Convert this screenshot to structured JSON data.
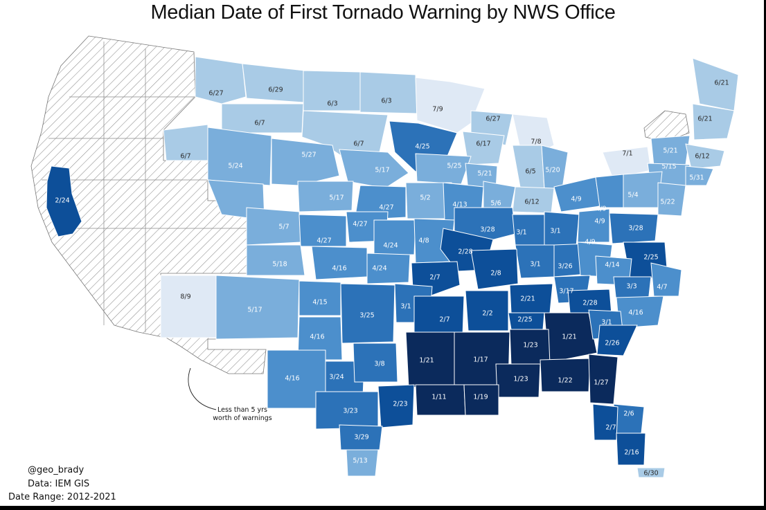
{
  "title": "Median Date of  First Tornado Warning by NWS Office",
  "credits": {
    "handle": "@geo_brady",
    "data": "Data: IEM GIS",
    "range": "Date Range: 2012-2021"
  },
  "annotation": "Less than 5 yrs worth of warnings",
  "colors": {
    "c1": "#0b2a5c",
    "c2": "#0d4f99",
    "c3": "#2c72b8",
    "c4": "#4c8fcc",
    "c5": "#7aaedb",
    "c6": "#a9cbe6",
    "c7": "#dfe9f5",
    "hatch": "#9a9a9a"
  },
  "offices": [
    {
      "id": "sto",
      "label": "2/24",
      "c": "c2"
    },
    {
      "id": "otx",
      "label": "6/27",
      "c": "c6"
    },
    {
      "id": "mso",
      "label": "6/29",
      "c": "c6"
    },
    {
      "id": "bis",
      "label": "6/3",
      "c": "c6"
    },
    {
      "id": "fgf",
      "label": "6/3",
      "c": "c6"
    },
    {
      "id": "dlh",
      "label": "7/9",
      "c": "c7"
    },
    {
      "id": "byz",
      "label": "6/7",
      "c": "c6"
    },
    {
      "id": "pdt",
      "label": "6/7",
      "c": "c6"
    },
    {
      "id": "unr",
      "label": "6/7",
      "c": "c6"
    },
    {
      "id": "mpx",
      "label": "4/25",
      "c": "c3"
    },
    {
      "id": "grb",
      "label": "6/27",
      "c": "c6"
    },
    {
      "id": "apx",
      "label": "7/8",
      "c": "c7"
    },
    {
      "id": "mkx",
      "label": "6/17",
      "c": "c6"
    },
    {
      "id": "cys",
      "label": "5/24",
      "c": "c5"
    },
    {
      "id": "lbf",
      "label": "5/27",
      "c": "c5"
    },
    {
      "id": "fsd",
      "label": "5/17",
      "c": "c5"
    },
    {
      "id": "arx",
      "label": "5/25",
      "c": "c5"
    },
    {
      "id": "dvn",
      "label": "5/21",
      "c": "c5"
    },
    {
      "id": "grr",
      "label": "6/5",
      "c": "c6"
    },
    {
      "id": "dtx",
      "label": "5/20",
      "c": "c5"
    },
    {
      "id": "buf",
      "label": "7/1",
      "c": "c7"
    },
    {
      "id": "btv",
      "label": "5/21",
      "c": "c5"
    },
    {
      "id": "box",
      "label": "6/12",
      "c": "c6"
    },
    {
      "id": "car",
      "label": "6/21",
      "c": "c6"
    },
    {
      "id": "gyx",
      "label": "6/21",
      "c": "c6"
    },
    {
      "id": "aly",
      "label": "5/15",
      "c": "c5"
    },
    {
      "id": "okx",
      "label": "5/31",
      "c": "c5"
    },
    {
      "id": "bou",
      "label": "5/17",
      "c": "c5"
    },
    {
      "id": "gld",
      "label": "5/17",
      "c": "c5"
    },
    {
      "id": "oax",
      "label": "4/27",
      "c": "c4"
    },
    {
      "id": "dmx",
      "label": "5/2",
      "c": "c5"
    },
    {
      "id": "ilx",
      "label": "4/13",
      "c": "c4"
    },
    {
      "id": "lot",
      "label": "5/6",
      "c": "c5"
    },
    {
      "id": "iwx",
      "label": "6/12",
      "c": "c6"
    },
    {
      "id": "cle",
      "label": "4/9",
      "c": "c4"
    },
    {
      "id": "ctp",
      "label": "4/9",
      "c": "c4"
    },
    {
      "id": "bgm",
      "label": "5/4",
      "c": "c5"
    },
    {
      "id": "phi",
      "label": "5/22",
      "c": "c5"
    },
    {
      "id": "gjt",
      "label": "5/7",
      "c": "c5"
    },
    {
      "id": "ddc",
      "label": "4/27",
      "c": "c4"
    },
    {
      "id": "top",
      "label": "4/27",
      "c": "c4"
    },
    {
      "id": "eax",
      "label": "4/24",
      "c": "c4"
    },
    {
      "id": "lsx",
      "label": "4/8",
      "c": "c4"
    },
    {
      "id": "pah",
      "label": "3/28",
      "c": "c3"
    },
    {
      "id": "ind",
      "label": "3/1",
      "c": "c3"
    },
    {
      "id": "iln",
      "label": "3/1",
      "c": "c3"
    },
    {
      "id": "pbz",
      "label": "4/9",
      "c": "c4"
    },
    {
      "id": "lwx",
      "label": "3/28",
      "c": "c3"
    },
    {
      "id": "pub",
      "label": "5/18",
      "c": "c5"
    },
    {
      "id": "ict",
      "label": "4/16",
      "c": "c4"
    },
    {
      "id": "sgf",
      "label": "4/24",
      "c": "c4"
    },
    {
      "id": "lzk_n",
      "label": "2/28",
      "c": "c2"
    },
    {
      "id": "lmk",
      "label": "3/1",
      "c": "c3"
    },
    {
      "id": "jkl",
      "label": "3/26",
      "c": "c3"
    },
    {
      "id": "rlx",
      "label": "4/9",
      "c": "c4"
    },
    {
      "id": "akq",
      "label": "2/25",
      "c": "c2"
    },
    {
      "id": "fcst",
      "label": "4/14",
      "c": "c4"
    },
    {
      "id": "abq",
      "label": "8/9",
      "c": "c7"
    },
    {
      "id": "abq2",
      "label": "5/17",
      "c": "c5"
    },
    {
      "id": "lzk",
      "label": "2/7",
      "c": "c2"
    },
    {
      "id": "ohx",
      "label": "2/8",
      "c": "c2"
    },
    {
      "id": "mrx",
      "label": "3/17",
      "c": "c3"
    },
    {
      "id": "rnk",
      "label": "3/3",
      "c": "c3"
    },
    {
      "id": "mhx",
      "label": "4/7",
      "c": "c4"
    },
    {
      "id": "ama",
      "label": "4/15",
      "c": "c4"
    },
    {
      "id": "oun",
      "label": "3/25",
      "c": "c3"
    },
    {
      "id": "tsa",
      "label": "3/1",
      "c": "c3"
    },
    {
      "id": "meg",
      "label": "2/21",
      "c": "c2"
    },
    {
      "id": "gsp",
      "label": "2/28",
      "c": "c2"
    },
    {
      "id": "rah",
      "label": "4/16",
      "c": "c4"
    },
    {
      "id": "lub",
      "label": "4/16",
      "c": "c4"
    },
    {
      "id": "shv",
      "label": "2/7",
      "c": "c2"
    },
    {
      "id": "jan_n",
      "label": "2/2",
      "c": "c2"
    },
    {
      "id": "hun",
      "label": "2/25",
      "c": "c2"
    },
    {
      "id": "ffc",
      "label": "1/21",
      "c": "c1"
    },
    {
      "id": "cae",
      "label": "3/1",
      "c": "c3"
    },
    {
      "id": "ilm",
      "label": "2/26",
      "c": "c2"
    },
    {
      "id": "maf",
      "label": "4/16",
      "c": "c4"
    },
    {
      "id": "fwd",
      "label": "3/24",
      "c": "c3"
    },
    {
      "id": "hgx_n",
      "label": "3/8",
      "c": "c3"
    },
    {
      "id": "lch",
      "label": "1/21",
      "c": "c1"
    },
    {
      "id": "jan",
      "label": "1/17",
      "c": "c1"
    },
    {
      "id": "bmx",
      "label": "1/23",
      "c": "c1"
    },
    {
      "id": "mob",
      "label": "1/23",
      "c": "c1"
    },
    {
      "id": "tae",
      "label": "1/22",
      "c": "c1"
    },
    {
      "id": "jax",
      "label": "1/27",
      "c": "c1"
    },
    {
      "id": "ewx",
      "label": "3/23",
      "c": "c3"
    },
    {
      "id": "hgx",
      "label": "2/23",
      "c": "c2"
    },
    {
      "id": "lix",
      "label": "1/11",
      "c": "c1"
    },
    {
      "id": "lix2",
      "label": "1/19",
      "c": "c1"
    },
    {
      "id": "crp",
      "label": "3/29",
      "c": "c3"
    },
    {
      "id": "bro",
      "label": "5/13",
      "c": "c5"
    },
    {
      "id": "mlb",
      "label": "2/6",
      "c": "c3"
    },
    {
      "id": "tbw",
      "label": "2/7",
      "c": "c2"
    },
    {
      "id": "mfl",
      "label": "2/16",
      "c": "c2"
    },
    {
      "id": "key",
      "label": "6/30",
      "c": "c6"
    }
  ]
}
